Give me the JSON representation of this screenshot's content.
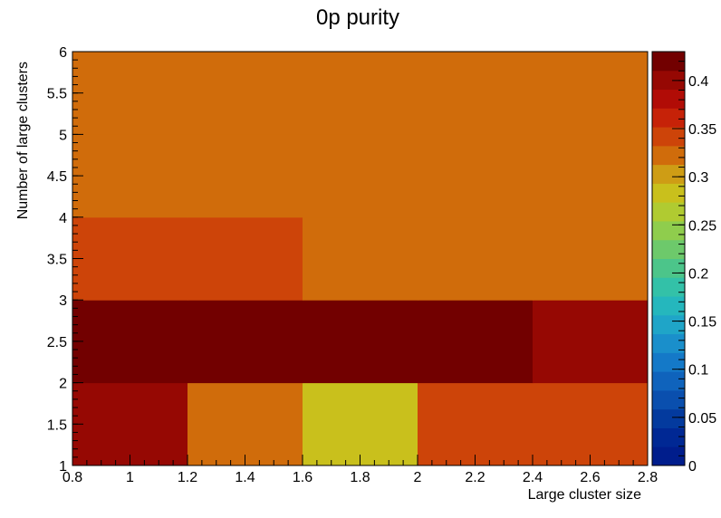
{
  "chart_data": {
    "type": "heatmap",
    "title": "0p purity",
    "xlabel": "Large cluster size",
    "ylabel": "Number of large clusters",
    "xlim": [
      0.8,
      2.8
    ],
    "ylim": [
      1,
      6
    ],
    "x_edges": [
      0.8,
      1.2,
      1.6,
      2.0,
      2.4,
      2.8
    ],
    "y_edges": [
      1,
      2,
      3,
      4,
      5,
      6
    ],
    "x_ticks": [
      "0.8",
      "1",
      "1.2",
      "1.4",
      "1.6",
      "1.8",
      "2",
      "2.2",
      "2.4",
      "2.6",
      "2.8"
    ],
    "y_ticks": [
      "1",
      "1.5",
      "2",
      "2.5",
      "3",
      "3.5",
      "4",
      "4.5",
      "5",
      "5.5",
      "6"
    ],
    "z_range": [
      0,
      0.43
    ],
    "colorbar_ticks": [
      "0",
      "0.05",
      "0.1",
      "0.15",
      "0.2",
      "0.25",
      "0.3",
      "0.35",
      "0.4"
    ],
    "values": [
      [
        0.395,
        0.315,
        0.29,
        0.345,
        0.345
      ],
      [
        0.43,
        0.43,
        0.43,
        0.43,
        0.395
      ],
      [
        0.345,
        0.345,
        0.33,
        0.33,
        0.33
      ],
      [
        0.33,
        0.315,
        0.315,
        0.315,
        0.315
      ],
      [
        0.315,
        0.315,
        0.315,
        0.315,
        0.315
      ]
    ],
    "palette": [
      "#001d8c",
      "#002894",
      "#033a9e",
      "#0a4fae",
      "#0f63bc",
      "#1479c8",
      "#1a8fcb",
      "#1fa5c8",
      "#25b7bd",
      "#33c1a8",
      "#4cc58a",
      "#6dc96b",
      "#8fcd4d",
      "#b0cb31",
      "#c9c01c",
      "#ce9d15",
      "#d06c0b",
      "#cd4409",
      "#c62208",
      "#b10c06",
      "#960803",
      "#720000"
    ]
  }
}
